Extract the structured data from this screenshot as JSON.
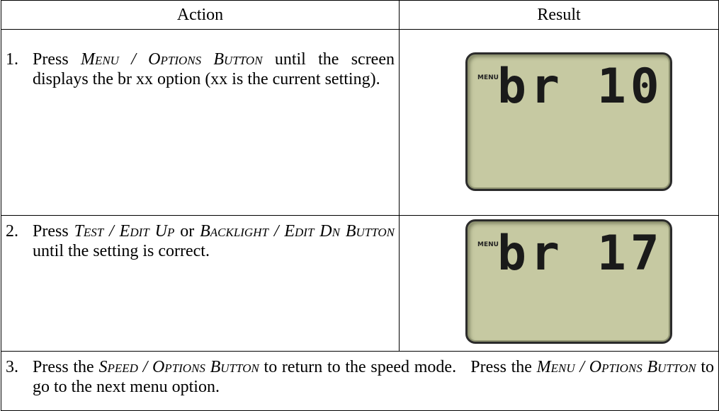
{
  "table": {
    "header": [
      "Action",
      "Result"
    ],
    "rows": [
      {
        "number": "1.",
        "runs": [
          {
            "text": "Press "
          },
          {
            "text": "Menu / Options Button",
            "em": true
          },
          {
            "text": " until the screen displays the br xx option (xx is the current setting)."
          }
        ],
        "display": {
          "label": "MENU",
          "reading": "br 10"
        }
      },
      {
        "number": "2.",
        "runs": [
          {
            "text": "Press "
          },
          {
            "text": "Test / Edit Up",
            "em": true
          },
          {
            "text": " or "
          },
          {
            "text": "Backlight / Edit Dn Button",
            "em": true
          },
          {
            "text": " until the setting is correct."
          }
        ],
        "display": {
          "label": "MENU",
          "reading": "br 17"
        }
      },
      {
        "number": "3.",
        "runs": [
          {
            "text": "Press the "
          },
          {
            "text": "Speed / Options Button",
            "em": true
          },
          {
            "text": " to return to the speed mode.   Press the "
          },
          {
            "text": "Menu / Options Button",
            "em": true
          },
          {
            "text": " to go to the next menu option."
          }
        ]
      }
    ]
  }
}
